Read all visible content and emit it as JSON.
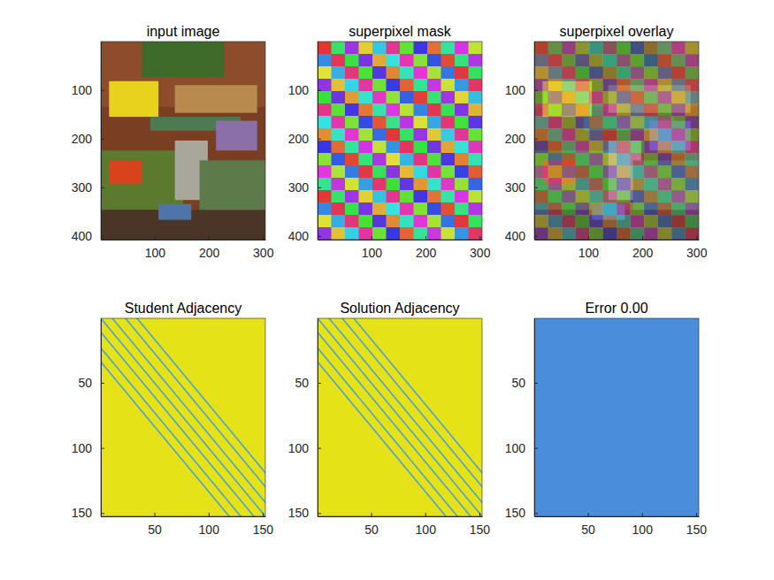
{
  "chart_data": [
    {
      "type": "image",
      "title": "input image",
      "xlim": [
        0.5,
        304.5
      ],
      "ylim": [
        0.5,
        407.5
      ],
      "xticks": [
        100,
        200,
        300
      ],
      "yticks": [
        100,
        200,
        300,
        400
      ]
    },
    {
      "type": "image",
      "title": "superpixel mask",
      "xlim": [
        0.5,
        304.5
      ],
      "ylim": [
        0.5,
        407.5
      ],
      "xticks": [
        100,
        200,
        300
      ],
      "yticks": [
        100,
        200,
        300,
        400
      ]
    },
    {
      "type": "image",
      "title": "superpixel overlay",
      "xlim": [
        0.5,
        304.5
      ],
      "ylim": [
        0.5,
        407.5
      ],
      "xticks": [
        100,
        200,
        300
      ],
      "yticks": [
        100,
        200,
        300,
        400
      ]
    },
    {
      "type": "image",
      "title": "Student Adjacency",
      "xlim": [
        0.5,
        152.5
      ],
      "ylim": [
        0.5,
        152.5
      ],
      "xticks": [
        50,
        100,
        150
      ],
      "yticks": [
        50,
        100,
        150
      ]
    },
    {
      "type": "image",
      "title": "Solution Adjacency",
      "xlim": [
        0.5,
        152.5
      ],
      "ylim": [
        0.5,
        152.5
      ],
      "xticks": [
        50,
        100,
        150
      ],
      "yticks": [
        50,
        100,
        150
      ]
    },
    {
      "type": "image",
      "title": "Error 0.00",
      "xlim": [
        0.5,
        152.5
      ],
      "ylim": [
        0.5,
        152.5
      ],
      "xticks": [
        50,
        100,
        150
      ],
      "yticks": [
        50,
        100,
        150
      ],
      "color": "#4a8edb"
    }
  ]
}
